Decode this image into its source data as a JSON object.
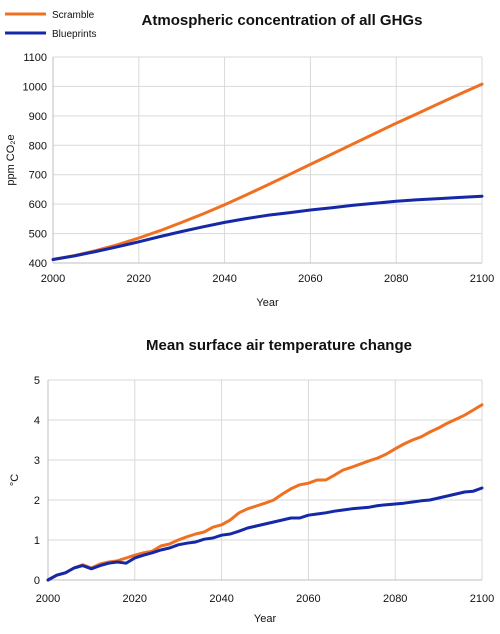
{
  "chart_data": [
    {
      "type": "line",
      "title": "Atmospheric concentration of all GHGs",
      "xlabel": "Year",
      "ylabel": "ppm CO₂e",
      "xlim": [
        2000,
        2100
      ],
      "ylim": [
        400,
        1100
      ],
      "x_ticks": [
        "2000",
        "2020",
        "2040",
        "2060",
        "2080",
        "2100"
      ],
      "y_ticks": [
        "400",
        "500",
        "600",
        "700",
        "800",
        "900",
        "1000",
        "1100"
      ],
      "grid": true,
      "legend": "top-left",
      "series": [
        {
          "name": "Scramble",
          "color": "#f07021",
          "x": [
            2000,
            2005,
            2010,
            2015,
            2020,
            2025,
            2030,
            2035,
            2040,
            2045,
            2050,
            2055,
            2060,
            2065,
            2070,
            2075,
            2080,
            2085,
            2090,
            2095,
            2100
          ],
          "values": [
            412,
            425,
            442,
            462,
            485,
            510,
            538,
            567,
            598,
            631,
            665,
            700,
            735,
            770,
            805,
            840,
            875,
            908,
            942,
            975,
            1008
          ]
        },
        {
          "name": "Blueprints",
          "color": "#1428a8",
          "x": [
            2000,
            2005,
            2010,
            2015,
            2020,
            2025,
            2030,
            2035,
            2040,
            2045,
            2050,
            2055,
            2060,
            2065,
            2070,
            2075,
            2080,
            2085,
            2090,
            2095,
            2100
          ],
          "values": [
            412,
            424,
            439,
            455,
            472,
            490,
            507,
            523,
            538,
            551,
            562,
            571,
            580,
            588,
            596,
            603,
            610,
            615,
            619,
            623,
            627
          ]
        }
      ]
    },
    {
      "type": "line",
      "title": "Mean surface air temperature change",
      "xlabel": "Year",
      "ylabel": "°C",
      "xlim": [
        2000,
        2100
      ],
      "ylim": [
        0,
        5
      ],
      "x_ticks": [
        "2000",
        "2020",
        "2040",
        "2060",
        "2080",
        "2100"
      ],
      "y_ticks": [
        "0",
        "1",
        "2",
        "3",
        "4",
        "5"
      ],
      "grid": true,
      "series": [
        {
          "name": "Scramble",
          "color": "#f07021",
          "x": [
            2000,
            2002,
            2004,
            2006,
            2008,
            2010,
            2012,
            2014,
            2016,
            2018,
            2020,
            2022,
            2024,
            2026,
            2028,
            2030,
            2032,
            2034,
            2036,
            2038,
            2040,
            2042,
            2044,
            2046,
            2048,
            2050,
            2052,
            2054,
            2056,
            2058,
            2060,
            2062,
            2064,
            2066,
            2068,
            2070,
            2072,
            2074,
            2076,
            2078,
            2080,
            2082,
            2084,
            2086,
            2088,
            2090,
            2092,
            2094,
            2096,
            2098,
            2100
          ],
          "values": [
            0.0,
            0.12,
            0.18,
            0.3,
            0.38,
            0.3,
            0.4,
            0.45,
            0.48,
            0.55,
            0.62,
            0.68,
            0.72,
            0.85,
            0.9,
            1.0,
            1.08,
            1.15,
            1.2,
            1.32,
            1.38,
            1.5,
            1.68,
            1.78,
            1.85,
            1.92,
            2.0,
            2.15,
            2.28,
            2.38,
            2.42,
            2.5,
            2.5,
            2.62,
            2.75,
            2.82,
            2.9,
            2.98,
            3.05,
            3.15,
            3.28,
            3.4,
            3.5,
            3.58,
            3.7,
            3.8,
            3.92,
            4.02,
            4.12,
            4.25,
            4.38
          ]
        },
        {
          "name": "Blueprints",
          "color": "#1428a8",
          "x": [
            2000,
            2002,
            2004,
            2006,
            2008,
            2010,
            2012,
            2014,
            2016,
            2018,
            2020,
            2022,
            2024,
            2026,
            2028,
            2030,
            2032,
            2034,
            2036,
            2038,
            2040,
            2042,
            2044,
            2046,
            2048,
            2050,
            2052,
            2054,
            2056,
            2058,
            2060,
            2062,
            2064,
            2066,
            2068,
            2070,
            2072,
            2074,
            2076,
            2078,
            2080,
            2082,
            2084,
            2086,
            2088,
            2090,
            2092,
            2094,
            2096,
            2098,
            2100
          ],
          "values": [
            0.0,
            0.12,
            0.18,
            0.3,
            0.36,
            0.28,
            0.36,
            0.42,
            0.45,
            0.42,
            0.55,
            0.62,
            0.68,
            0.75,
            0.8,
            0.88,
            0.92,
            0.95,
            1.02,
            1.05,
            1.12,
            1.15,
            1.22,
            1.3,
            1.35,
            1.4,
            1.45,
            1.5,
            1.55,
            1.55,
            1.62,
            1.65,
            1.68,
            1.72,
            1.75,
            1.78,
            1.8,
            1.82,
            1.86,
            1.88,
            1.9,
            1.92,
            1.95,
            1.98,
            2.0,
            2.05,
            2.1,
            2.15,
            2.2,
            2.22,
            2.3
          ]
        }
      ]
    }
  ]
}
